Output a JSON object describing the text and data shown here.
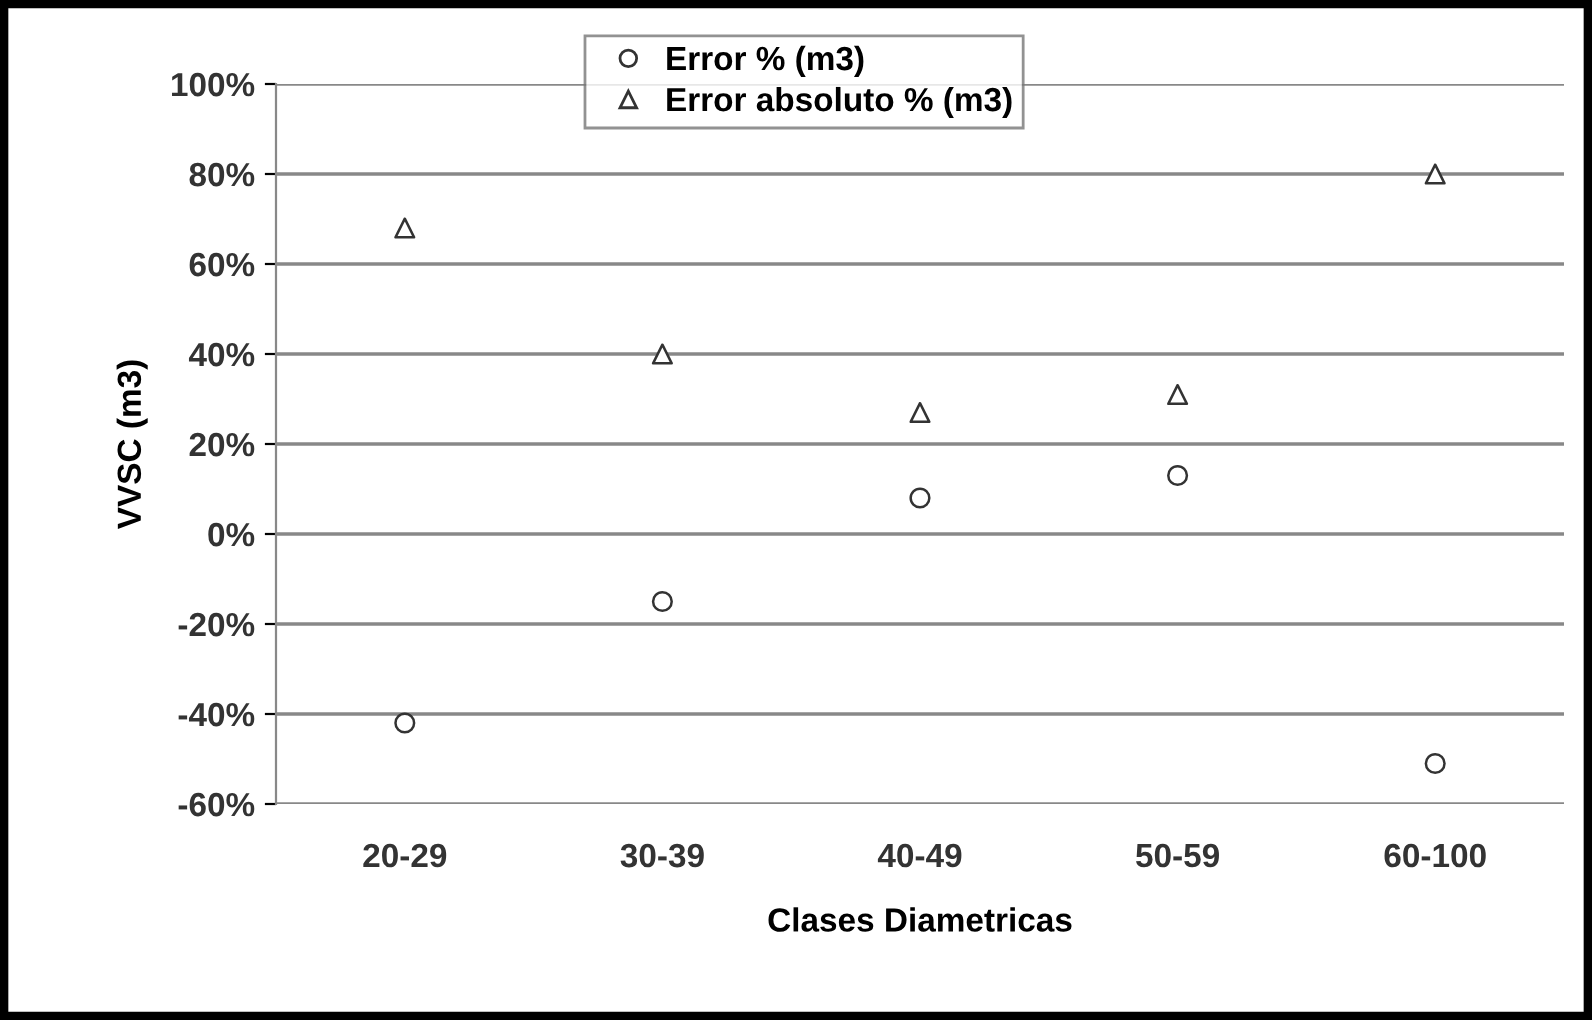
{
  "chart_data": {
    "type": "scatter",
    "xlabel": "Clases Diametricas",
    "ylabel": "VVSC (m3)",
    "categories": [
      "20-29",
      "30-39",
      "40-49",
      "50-59",
      "60-100"
    ],
    "series": [
      {
        "name": "Error % (m3)",
        "color": "#333333",
        "marker": "circle",
        "values": [
          -42,
          -15,
          8,
          13,
          -51
        ]
      },
      {
        "name": "Error absoluto % (m3)",
        "color": "#333333",
        "marker": "triangle",
        "values": [
          68,
          40,
          27,
          31,
          80
        ]
      }
    ],
    "ylim": [
      -60,
      100
    ],
    "yticks": [
      {
        "value": -60,
        "label": "-60%"
      },
      {
        "value": -40,
        "label": "-40%"
      },
      {
        "value": -20,
        "label": "-20%"
      },
      {
        "value": 0,
        "label": "0%"
      },
      {
        "value": 20,
        "label": "20%"
      },
      {
        "value": 40,
        "label": "40%"
      },
      {
        "value": 60,
        "label": "60%"
      },
      {
        "value": 80,
        "label": "80%"
      },
      {
        "value": 100,
        "label": "100%"
      }
    ],
    "grid": "y",
    "legend": "top"
  }
}
